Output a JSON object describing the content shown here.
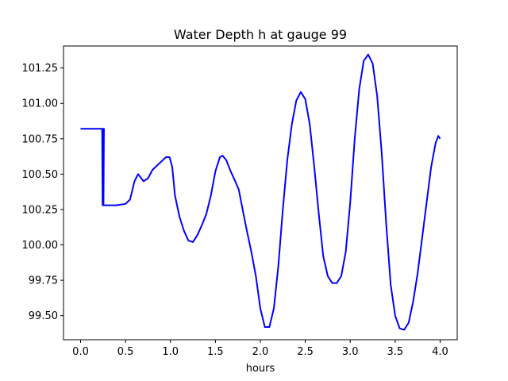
{
  "chart_data": {
    "type": "line",
    "title": "Water Depth h at gauge 99",
    "xlabel": "hours",
    "ylabel": "",
    "xlim": [
      -0.19,
      4.19
    ],
    "ylim": [
      99.33,
      101.405
    ],
    "x_ticks": [
      0.0,
      0.5,
      1.0,
      1.5,
      2.0,
      2.5,
      3.0,
      3.5,
      4.0
    ],
    "x_tick_labels": [
      "0.0",
      "0.5",
      "1.0",
      "1.5",
      "2.0",
      "2.5",
      "3.0",
      "3.5",
      "4.0"
    ],
    "y_ticks": [
      99.5,
      99.75,
      100.0,
      100.25,
      100.5,
      100.75,
      101.0,
      101.25
    ],
    "y_tick_labels": [
      "99.50",
      "99.75",
      "100.00",
      "100.25",
      "100.50",
      "100.75",
      "101.00",
      "101.25"
    ],
    "grid": false,
    "series": [
      {
        "color": "#0000ff",
        "points": [
          [
            0.0,
            100.82
          ],
          [
            0.24,
            100.82
          ],
          [
            0.245,
            100.28
          ],
          [
            0.25,
            100.82
          ],
          [
            0.26,
            100.82
          ],
          [
            0.255,
            100.28
          ],
          [
            0.3,
            100.28
          ],
          [
            0.4,
            100.28
          ],
          [
            0.5,
            100.29
          ],
          [
            0.55,
            100.32
          ],
          [
            0.6,
            100.45
          ],
          [
            0.64,
            100.5
          ],
          [
            0.7,
            100.45
          ],
          [
            0.75,
            100.47
          ],
          [
            0.8,
            100.53
          ],
          [
            0.9,
            100.59
          ],
          [
            0.95,
            100.62
          ],
          [
            0.99,
            100.62
          ],
          [
            1.02,
            100.55
          ],
          [
            1.05,
            100.35
          ],
          [
            1.1,
            100.2
          ],
          [
            1.15,
            100.1
          ],
          [
            1.2,
            100.03
          ],
          [
            1.25,
            100.02
          ],
          [
            1.3,
            100.07
          ],
          [
            1.35,
            100.14
          ],
          [
            1.4,
            100.22
          ],
          [
            1.45,
            100.35
          ],
          [
            1.5,
            100.52
          ],
          [
            1.55,
            100.62
          ],
          [
            1.58,
            100.63
          ],
          [
            1.62,
            100.6
          ],
          [
            1.67,
            100.52
          ],
          [
            1.72,
            100.45
          ],
          [
            1.76,
            100.39
          ],
          [
            1.8,
            100.26
          ],
          [
            1.85,
            100.1
          ],
          [
            1.9,
            99.95
          ],
          [
            1.95,
            99.78
          ],
          [
            2.0,
            99.55
          ],
          [
            2.05,
            99.42
          ],
          [
            2.1,
            99.42
          ],
          [
            2.15,
            99.55
          ],
          [
            2.2,
            99.85
          ],
          [
            2.25,
            100.25
          ],
          [
            2.3,
            100.6
          ],
          [
            2.35,
            100.85
          ],
          [
            2.4,
            101.02
          ],
          [
            2.45,
            101.08
          ],
          [
            2.5,
            101.03
          ],
          [
            2.55,
            100.85
          ],
          [
            2.6,
            100.55
          ],
          [
            2.65,
            100.22
          ],
          [
            2.7,
            99.92
          ],
          [
            2.75,
            99.78
          ],
          [
            2.8,
            99.73
          ],
          [
            2.85,
            99.73
          ],
          [
            2.9,
            99.78
          ],
          [
            2.95,
            99.95
          ],
          [
            3.0,
            100.3
          ],
          [
            3.05,
            100.75
          ],
          [
            3.1,
            101.1
          ],
          [
            3.15,
            101.3
          ],
          [
            3.2,
            101.345
          ],
          [
            3.25,
            101.28
          ],
          [
            3.3,
            101.05
          ],
          [
            3.35,
            100.65
          ],
          [
            3.4,
            100.15
          ],
          [
            3.45,
            99.72
          ],
          [
            3.5,
            99.5
          ],
          [
            3.55,
            99.41
          ],
          [
            3.6,
            99.4
          ],
          [
            3.65,
            99.45
          ],
          [
            3.7,
            99.6
          ],
          [
            3.75,
            99.8
          ],
          [
            3.8,
            100.05
          ],
          [
            3.85,
            100.3
          ],
          [
            3.9,
            100.55
          ],
          [
            3.95,
            100.72
          ],
          [
            3.98,
            100.77
          ],
          [
            4.0,
            100.75
          ]
        ]
      }
    ]
  }
}
